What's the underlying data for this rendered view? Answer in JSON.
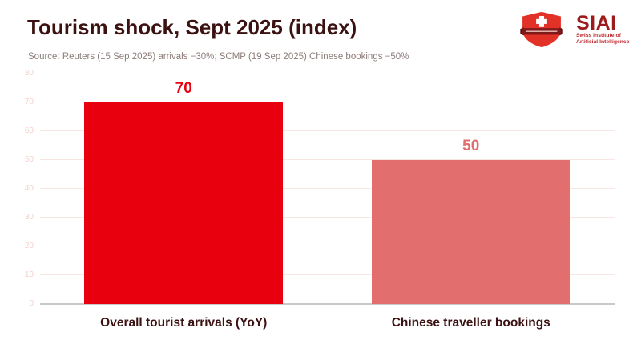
{
  "header": {
    "title": "Tourism shock, Sept 2025 (index)",
    "source": "Source: Reuters (15 Sep 2025) arrivals −30%; SCMP (19 Sep 2025) Chinese bookings −50%"
  },
  "logo": {
    "acronym": "SIAI",
    "subtitle_line1": "Swiss Institute of",
    "subtitle_line2": "Artificial Intelligence",
    "shield_color": "#e23227",
    "banner_color": "#7f1a1a",
    "cross_color": "#ffffff",
    "text_color": "#9e1b1b"
  },
  "chart_data": {
    "type": "bar",
    "title": "Tourism shock, Sept 2025 (index)",
    "categories": [
      "Overall tourist arrivals (YoY)",
      "Chinese traveller bookings"
    ],
    "values": [
      70,
      50
    ],
    "bar_colors": [
      "#e8000f",
      "#e26e6e"
    ],
    "value_label_colors": [
      "#e8000f",
      "#e26e6e"
    ],
    "xlabel": "",
    "ylabel": "",
    "ylim": [
      0,
      80
    ],
    "yticks": [
      0,
      10,
      20,
      30,
      40,
      50,
      60,
      70,
      80
    ],
    "grid": true,
    "legend": false,
    "gridline_color": "#f8e6e2",
    "axis_line_color": "#c9c9c9",
    "tick_label_color": "#f3d1cc",
    "category_label_color": "#3b1111"
  }
}
